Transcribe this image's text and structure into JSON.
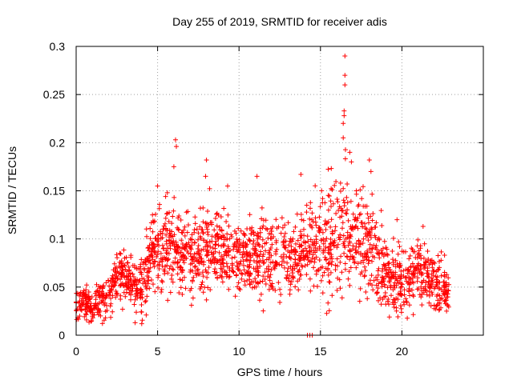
{
  "chart_data": {
    "type": "scatter",
    "title": "Day 255 of 2019, SRMTID for receiver adis",
    "xlabel": "GPS time / hours",
    "ylabel": "SRMTID / TECUs",
    "xlim": [
      0,
      25
    ],
    "ylim": [
      0,
      0.3
    ],
    "xticks": [
      0,
      5,
      10,
      15,
      20
    ],
    "xtick_labels": [
      "0",
      "5",
      "10",
      "15",
      "20"
    ],
    "yticks": [
      0,
      0.05,
      0.1,
      0.15,
      0.2,
      0.25,
      0.3
    ],
    "ytick_labels": [
      "0",
      "0.05",
      "0.1",
      "0.15",
      "0.2",
      "0.25",
      "0.3"
    ],
    "grid": true,
    "marker": "+",
    "series": [
      {
        "name": "SRMTID",
        "color": "#ff0000",
        "trend": [
          [
            0,
            0.035
          ],
          [
            1,
            0.03
          ],
          [
            2,
            0.04
          ],
          [
            2.5,
            0.06
          ],
          [
            3,
            0.06
          ],
          [
            3.5,
            0.055
          ],
          [
            4,
            0.045
          ],
          [
            4.5,
            0.08
          ],
          [
            5,
            0.095
          ],
          [
            5.5,
            0.09
          ],
          [
            6,
            0.095
          ],
          [
            6.5,
            0.08
          ],
          [
            7,
            0.085
          ],
          [
            7.5,
            0.085
          ],
          [
            8,
            0.09
          ],
          [
            8.5,
            0.095
          ],
          [
            9,
            0.09
          ],
          [
            9.5,
            0.085
          ],
          [
            10,
            0.08
          ],
          [
            10.5,
            0.08
          ],
          [
            11,
            0.075
          ],
          [
            11.5,
            0.08
          ],
          [
            12,
            0.085
          ],
          [
            12.5,
            0.08
          ],
          [
            13,
            0.085
          ],
          [
            13.5,
            0.085
          ],
          [
            14,
            0.09
          ],
          [
            14.5,
            0.095
          ],
          [
            15,
            0.09
          ],
          [
            15.5,
            0.09
          ],
          [
            16,
            0.1
          ],
          [
            16.5,
            0.11
          ],
          [
            17,
            0.1
          ],
          [
            17.5,
            0.1
          ],
          [
            18,
            0.095
          ],
          [
            18.5,
            0.08
          ],
          [
            19,
            0.065
          ],
          [
            19.5,
            0.055
          ],
          [
            20,
            0.055
          ],
          [
            20.5,
            0.06
          ],
          [
            21,
            0.07
          ],
          [
            21.5,
            0.065
          ],
          [
            22,
            0.055
          ],
          [
            22.5,
            0.05
          ],
          [
            22.9,
            0.045
          ]
        ],
        "spread": [
          [
            0,
            0.012
          ],
          [
            2,
            0.015
          ],
          [
            4,
            0.02
          ],
          [
            5,
            0.03
          ],
          [
            10,
            0.025
          ],
          [
            14,
            0.025
          ],
          [
            16,
            0.04
          ],
          [
            18,
            0.035
          ],
          [
            19,
            0.025
          ],
          [
            22.9,
            0.02
          ]
        ],
        "peaks": [
          [
            16.5,
            0.29
          ],
          [
            16.5,
            0.27
          ],
          [
            16.5,
            0.26
          ],
          [
            16.45,
            0.233
          ],
          [
            16.45,
            0.228
          ],
          [
            16.4,
            0.22
          ],
          [
            16.4,
            0.205
          ],
          [
            6.1,
            0.203
          ],
          [
            6.15,
            0.196
          ],
          [
            8,
            0.182
          ],
          [
            7.95,
            0.165
          ],
          [
            6.0,
            0.175
          ],
          [
            9.3,
            0.155
          ],
          [
            11.1,
            0.165
          ],
          [
            13.8,
            0.167
          ],
          [
            18.0,
            0.182
          ],
          [
            18.1,
            0.17
          ],
          [
            16.8,
            0.19
          ],
          [
            16.9,
            0.18
          ],
          [
            17.2,
            0.15
          ],
          [
            19.7,
            0.12
          ],
          [
            21.3,
            0.113
          ],
          [
            5.0,
            0.155
          ],
          [
            5.6,
            0.148
          ]
        ],
        "x_range": [
          0,
          22.9
        ],
        "point_count": 2000,
        "zero_points": [
          [
            14.2,
            0.0
          ],
          [
            14.35,
            0.0
          ],
          [
            14.5,
            0.0
          ]
        ]
      }
    ]
  }
}
